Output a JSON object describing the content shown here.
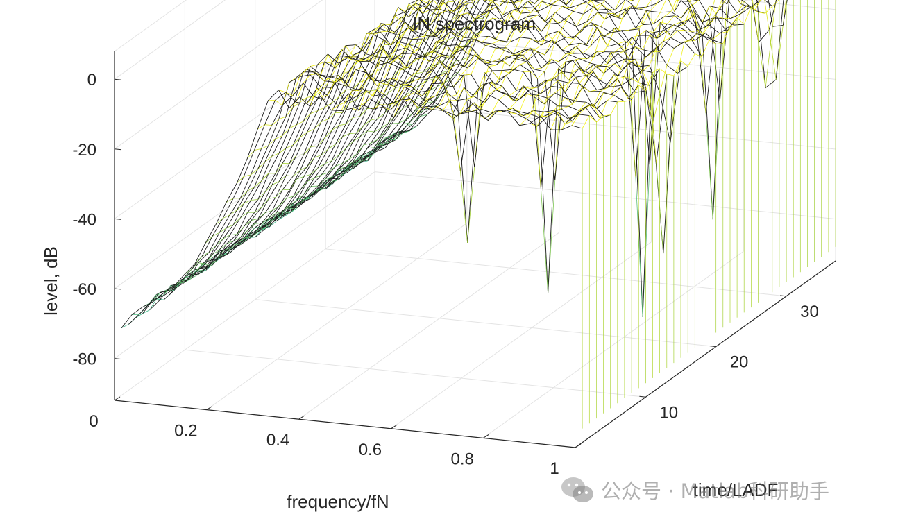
{
  "chart_data": {
    "type": "mesh3d",
    "title": "IN spectrogram",
    "xlabel": "frequency/fN",
    "ylabel": "time/LADF",
    "zlabel": "level, dB",
    "x_ticks": [
      "0",
      "0.2",
      "0.4",
      "0.6",
      "0.8",
      "1"
    ],
    "x_range": [
      0,
      1
    ],
    "y_ticks": [
      "10",
      "20",
      "30"
    ],
    "y_range": [
      0,
      37
    ],
    "z_ticks": [
      "0",
      "-20",
      "-40",
      "-60",
      "-80"
    ],
    "z_range": [
      -92,
      8
    ],
    "grid": true,
    "colormap": "parula (green to yellow)",
    "description_of_values": "z = level in dB over frequency (0-1 fN) and time (1-37 LADF); near -60 to -90 dB at low frequencies, rising to about 0 dB above ~0.25 fN, with deep notches near 0.6-0.9 fN at some time slices"
  },
  "watermark": {
    "text": "公众号 · Matlab科研助手"
  }
}
